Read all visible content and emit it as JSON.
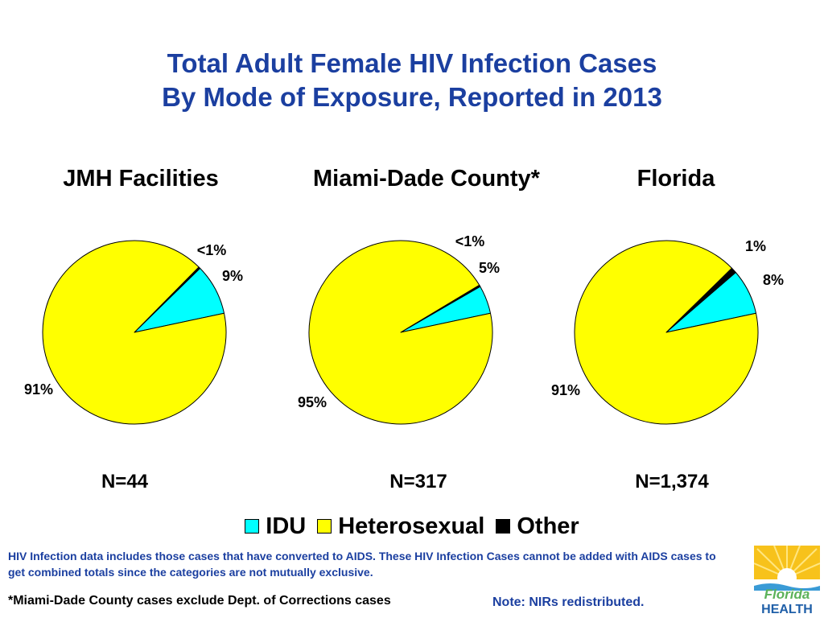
{
  "title": {
    "line1": "Total Adult Female HIV Infection Cases",
    "line2": "By Mode of Exposure, Reported in 2013"
  },
  "colors": {
    "title": "#1b3fa0",
    "idu": "#00ffff",
    "heterosexual": "#ffff00",
    "other": "#000000"
  },
  "chart_data": [
    {
      "type": "pie",
      "title": "JMH Facilities",
      "n_label": "N=44",
      "slices": [
        {
          "name": "IDU",
          "value": 9,
          "label": "9%"
        },
        {
          "name": "Heterosexual",
          "value": 91,
          "label": "91%"
        },
        {
          "name": "Other",
          "value": 0.3,
          "label": "<1%"
        }
      ]
    },
    {
      "type": "pie",
      "title": "Miami-Dade County*",
      "n_label": "N=317",
      "slices": [
        {
          "name": "IDU",
          "value": 5,
          "label": "5%"
        },
        {
          "name": "Heterosexual",
          "value": 95,
          "label": "95%"
        },
        {
          "name": "Other",
          "value": 0.3,
          "label": "<1%"
        }
      ]
    },
    {
      "type": "pie",
      "title": "Florida",
      "n_label": "N=1,374",
      "slices": [
        {
          "name": "IDU",
          "value": 8,
          "label": "8%"
        },
        {
          "name": "Heterosexual",
          "value": 91,
          "label": "91%"
        },
        {
          "name": "Other",
          "value": 1,
          "label": "1%"
        }
      ]
    }
  ],
  "legend": [
    {
      "label": "IDU",
      "color": "#00ffff"
    },
    {
      "label": "Heterosexual",
      "color": "#ffff00"
    },
    {
      "label": "Other",
      "color": "#000000"
    }
  ],
  "notes": {
    "hiv_note": "HIV Infection data includes those cases that have converted to AIDS.  These HIV Infection Cases cannot be added with AIDS cases to get combined totals since the categories are not mutually exclusive.",
    "footnote": "*Miami-Dade County cases exclude Dept. of Corrections cases",
    "nir_note": "Note:  NIRs redistributed."
  },
  "logo": {
    "text_line1": "Florida",
    "text_line2": "HEALTH"
  }
}
